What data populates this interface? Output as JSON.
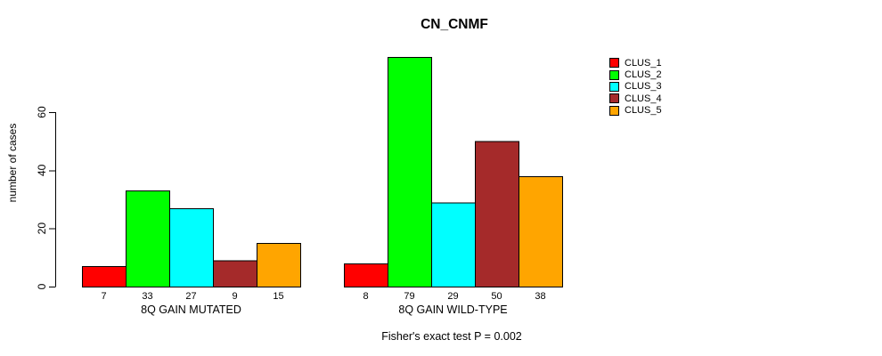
{
  "chart_data": {
    "type": "bar",
    "title": "CN_CNMF",
    "xlabel": "",
    "ylabel": "number of cases",
    "categories": [
      "8Q GAIN MUTATED",
      "8Q GAIN WILD-TYPE"
    ],
    "series": [
      {
        "name": "CLUS_1",
        "color": "#FF0000",
        "values": [
          7,
          8
        ]
      },
      {
        "name": "CLUS_2",
        "color": "#00FF00",
        "values": [
          33,
          79
        ]
      },
      {
        "name": "CLUS_3",
        "color": "#00FFFF",
        "values": [
          27,
          29
        ]
      },
      {
        "name": "CLUS_4",
        "color": "#A52A2A",
        "values": [
          9,
          50
        ]
      },
      {
        "name": "CLUS_5",
        "color": "#FFA500",
        "values": [
          15,
          38
        ]
      }
    ],
    "yticks": [
      0,
      20,
      40,
      60
    ],
    "ylim": [
      0,
      79
    ],
    "bar_value_labels": true,
    "grid": false,
    "legend_position": "right-outside",
    "annotation": "Fisher's exact test P = 0.002",
    "axis_color": "#000000",
    "bar_border_color": "#000000"
  }
}
